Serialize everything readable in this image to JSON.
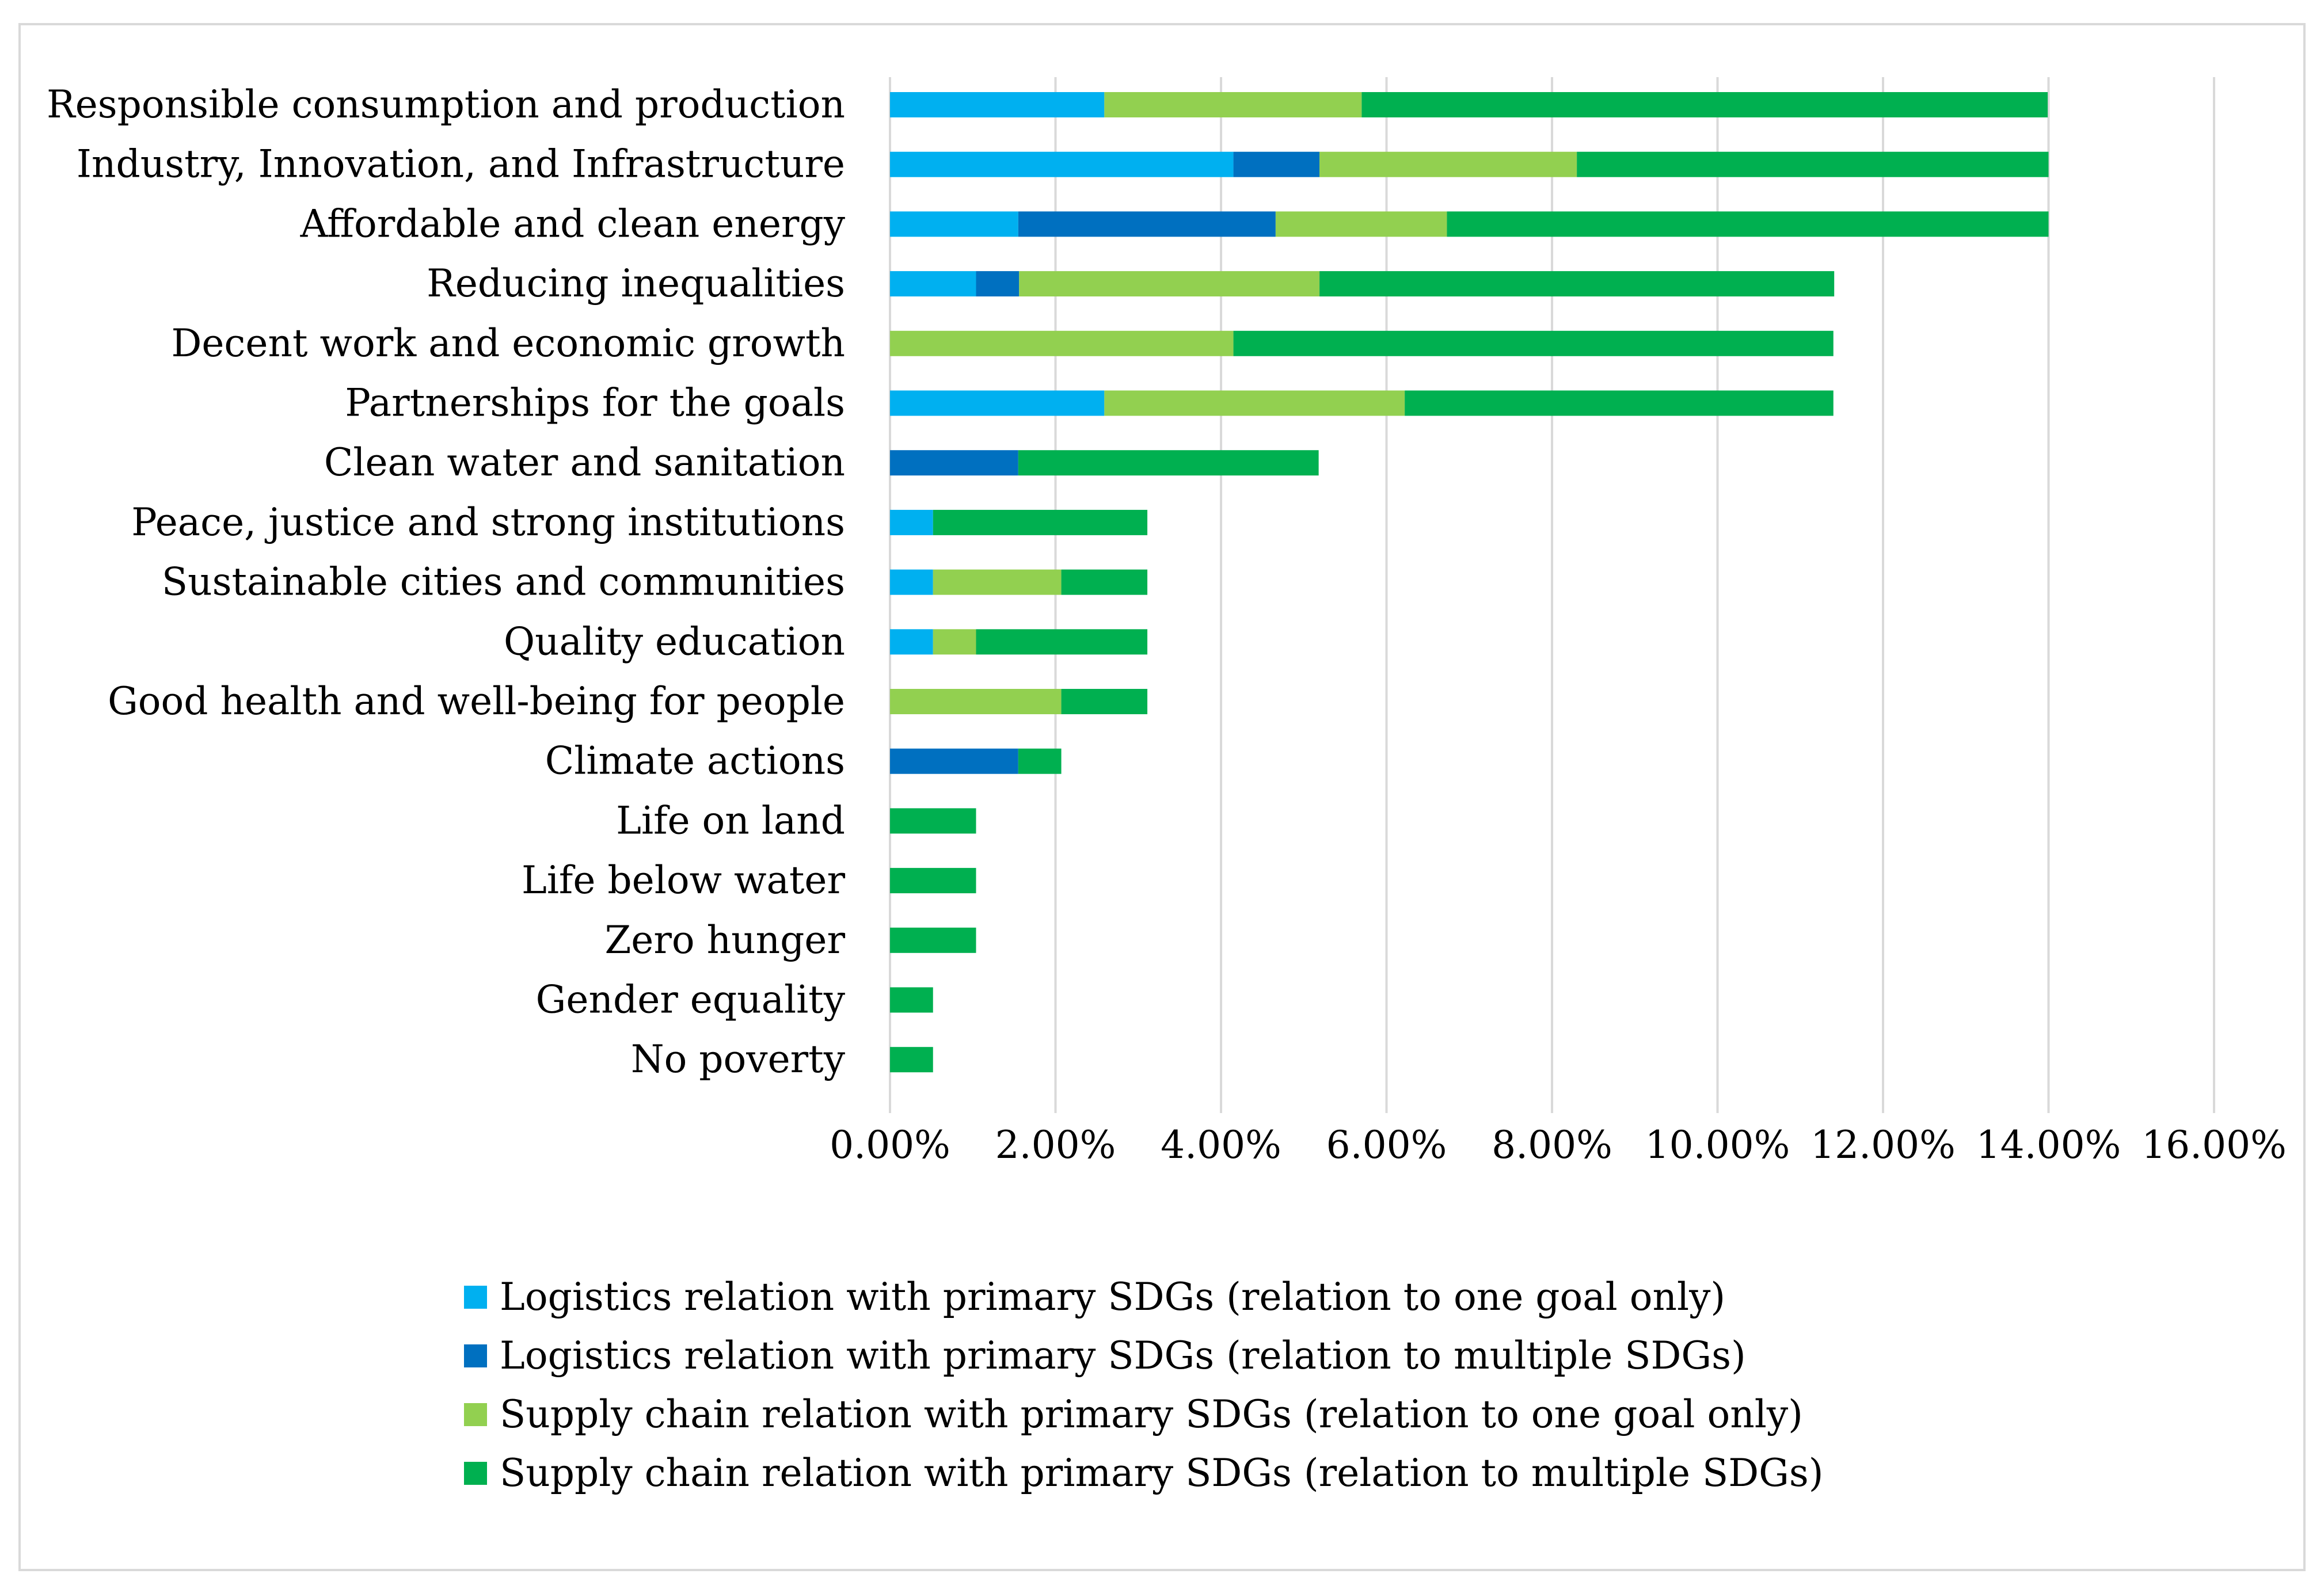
{
  "chart_data": {
    "type": "bar",
    "orientation": "horizontal",
    "stacked": true,
    "categories": [
      "Responsible consumption and production",
      "Industry, Innovation, and Infrastructure",
      "Affordable and clean energy",
      "Reducing inequalities",
      "Decent work and economic growth",
      "Partnerships for the goals",
      "Clean water and sanitation",
      "Peace, justice and strong institutions",
      "Sustainable cities and communities",
      "Quality education",
      "Good health and well-being for people",
      "Climate actions",
      "Life on land",
      "Life below water",
      "Zero hunger",
      "Gender equality",
      "No poverty"
    ],
    "series": [
      {
        "name": "Logistics relation with primary SDGs (relation to one goal only)",
        "color": "#00b0f0",
        "values": [
          2.59,
          4.15,
          1.55,
          1.04,
          0,
          2.59,
          0,
          0.52,
          0.52,
          0.52,
          0,
          0,
          0,
          0,
          0,
          0,
          0
        ]
      },
      {
        "name": "Logistics relation with primary SDGs (relation to multiple SDGs)",
        "color": "#0070c0",
        "values": [
          0,
          1.04,
          3.11,
          0.52,
          0,
          0,
          1.55,
          0,
          0,
          0,
          0,
          1.55,
          0,
          0,
          0,
          0,
          0
        ]
      },
      {
        "name": "Supply chain relation with primary SDGs (relation to one goal only)",
        "color": "#92d050",
        "values": [
          3.11,
          3.11,
          2.07,
          3.63,
          4.15,
          3.63,
          0,
          0,
          1.55,
          0.52,
          2.07,
          0,
          0,
          0,
          0,
          0,
          0
        ]
      },
      {
        "name": "Supply chain relation with primary SDGs (relation to multiple SDGs)",
        "color": "#00b050",
        "values": [
          8.29,
          5.7,
          7.27,
          6.22,
          7.25,
          5.18,
          3.63,
          2.59,
          1.04,
          2.07,
          1.04,
          0.52,
          1.04,
          1.04,
          1.04,
          0.52,
          0.52
        ]
      }
    ],
    "x_ticks": [
      "0.00%",
      "2.00%",
      "4.00%",
      "6.00%",
      "8.00%",
      "10.00%",
      "12.00%",
      "14.00%",
      "16.00%"
    ],
    "xlim": [
      0,
      16
    ],
    "grid": true,
    "gridline_color": "#d9d9d9",
    "legend_position": "bottom",
    "title": "",
    "xlabel": "",
    "ylabel": ""
  }
}
